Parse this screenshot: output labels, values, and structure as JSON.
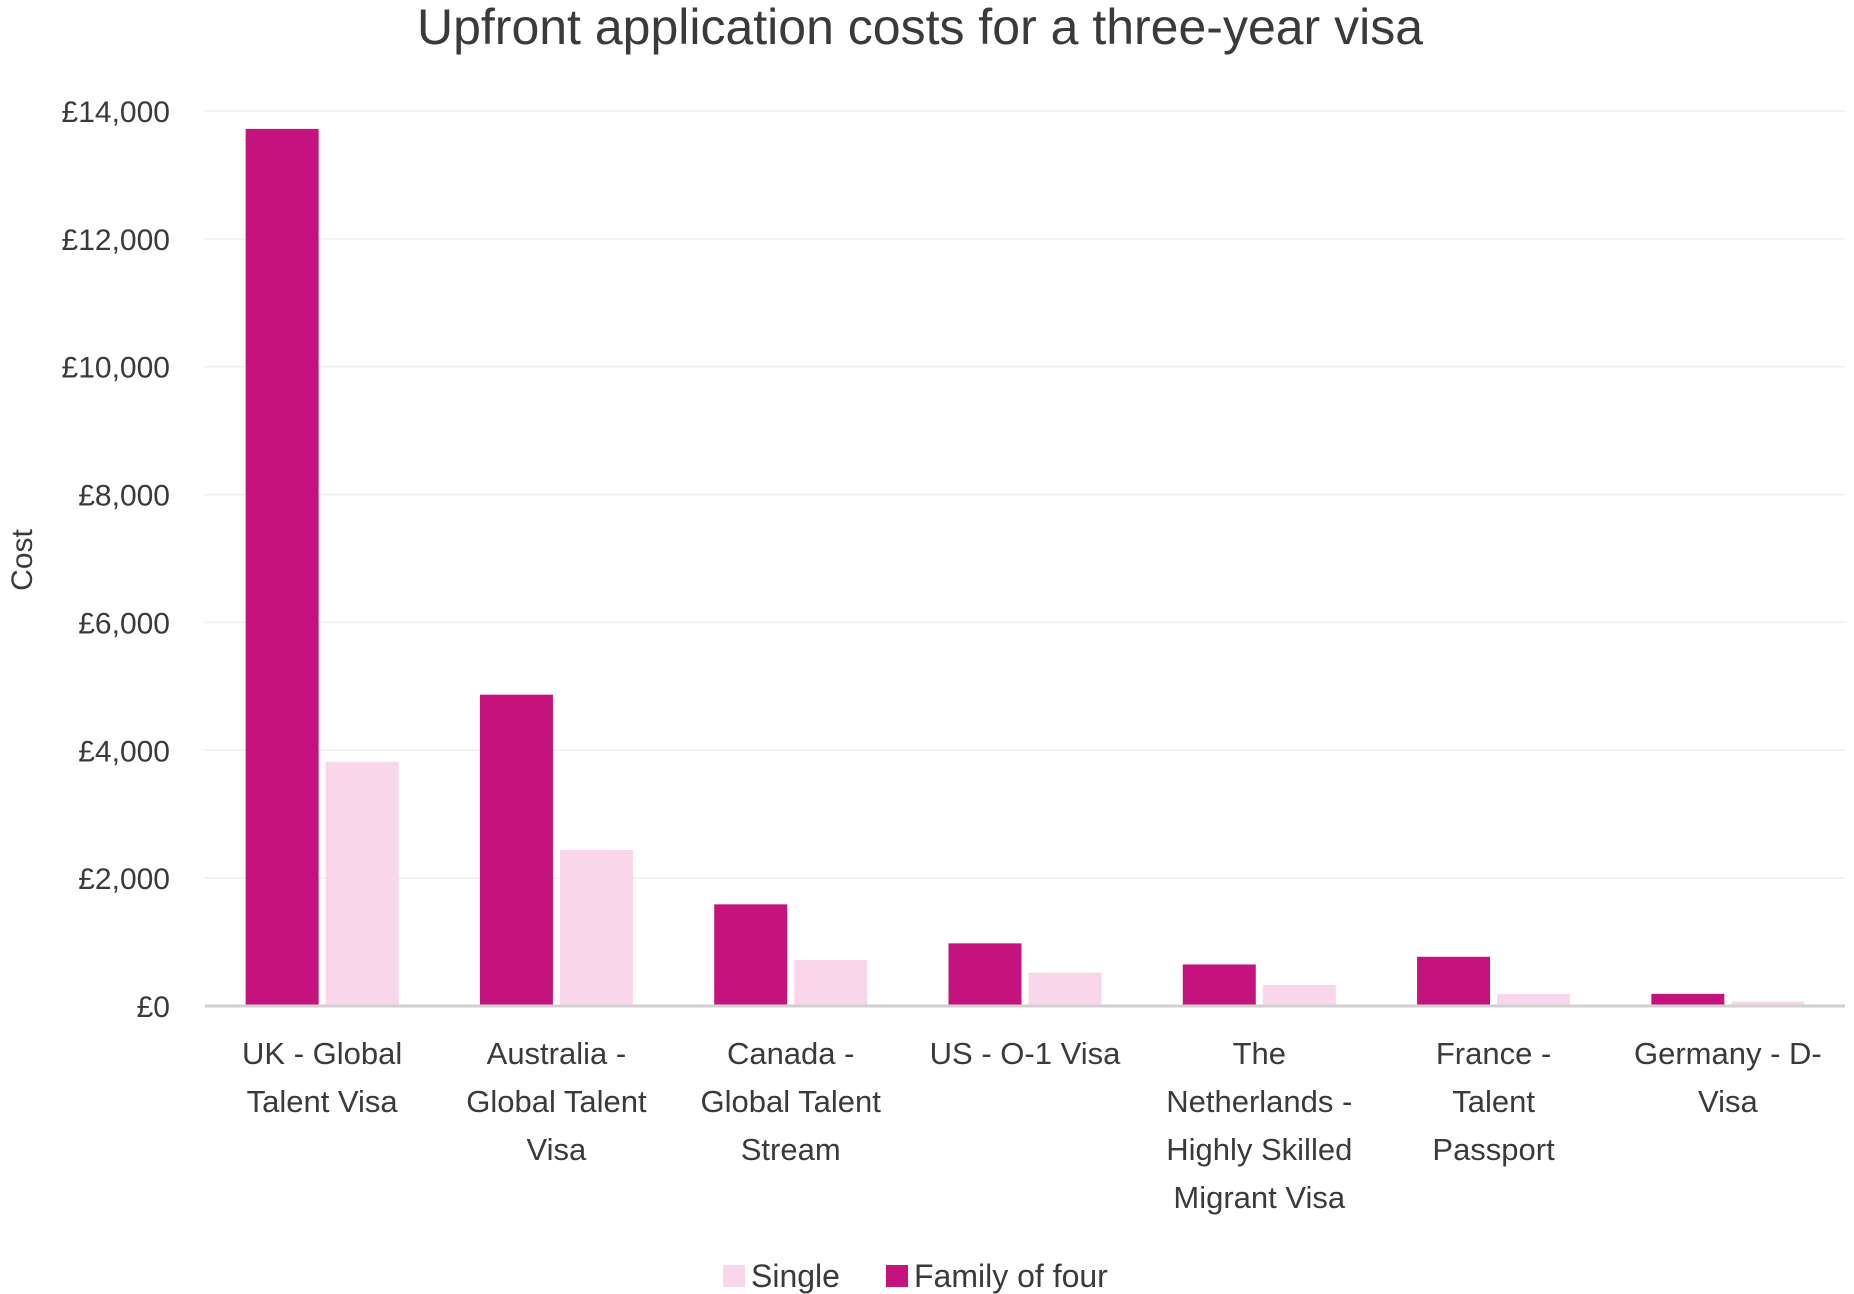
{
  "chart_data": {
    "type": "bar",
    "title": "Upfront application costs for a three-year visa",
    "xlabel": "",
    "ylabel": "Cost",
    "ylim": [
      0,
      14000
    ],
    "yticks": [
      0,
      2000,
      4000,
      6000,
      8000,
      10000,
      12000,
      14000
    ],
    "ytick_labels": [
      "£0",
      "£2,000",
      "£4,000",
      "£6,000",
      "£8,000",
      "£10,000",
      "£12,000",
      "£14,000"
    ],
    "grid": true,
    "legend_position": "bottom",
    "categories": [
      [
        "UK - Global",
        "Talent Visa"
      ],
      [
        "Australia -",
        "Global Talent",
        "Visa"
      ],
      [
        "Canada -",
        "Global Talent",
        "Stream"
      ],
      [
        "US - O-1 Visa"
      ],
      [
        "The",
        "Netherlands -",
        "Highly Skilled",
        "Migrant Visa"
      ],
      [
        "France -",
        "Talent",
        "Passport"
      ],
      [
        "Germany - D-",
        "Visa"
      ]
    ],
    "series": [
      {
        "name": "Family of four",
        "color": "#c4137c",
        "values": [
          13720,
          4870,
          1590,
          980,
          650,
          770,
          190
        ]
      },
      {
        "name": "Single",
        "color": "#fad6ea",
        "values": [
          3820,
          2440,
          720,
          520,
          330,
          190,
          70
        ]
      }
    ],
    "legend": [
      {
        "name": "Single",
        "color": "#fad6ea"
      },
      {
        "name": "Family of four",
        "color": "#c4137c"
      }
    ]
  }
}
